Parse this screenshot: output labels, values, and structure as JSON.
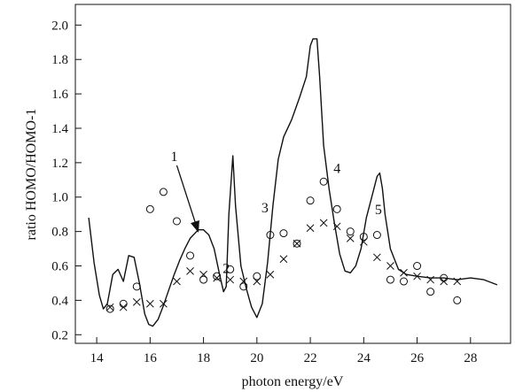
{
  "chart_data": {
    "type": "line",
    "xlabel": "photon energy/eV",
    "ylabel": "ratio HOMO/HOMO-1",
    "xlim": [
      13.2,
      29.5
    ],
    "ylim": [
      0.15,
      2.12
    ],
    "x_ticks": [
      14,
      16,
      18,
      20,
      22,
      24,
      26,
      28
    ],
    "x_tick_labels": [
      "14",
      "16",
      "18",
      "20",
      "22",
      "24",
      "26",
      "28"
    ],
    "y_ticks": [
      0.2,
      0.4,
      0.6,
      0.8,
      1.0,
      1.2,
      1.4,
      1.6,
      1.8,
      2.0
    ],
    "y_tick_labels": [
      "0.2",
      "0.4",
      "0.6",
      "0.8",
      "1.0",
      "1.2",
      "1.4",
      "1.6",
      "1.8",
      "2.0"
    ],
    "grid": false,
    "legend": "none",
    "series": [
      {
        "marker": "line",
        "x": [
          13.7,
          13.9,
          14.1,
          14.25,
          14.4,
          14.6,
          14.8,
          15.0,
          15.2,
          15.4,
          15.6,
          15.8,
          15.95,
          16.1,
          16.3,
          16.5,
          16.7,
          16.9,
          17.1,
          17.3,
          17.5,
          17.8,
          18.0,
          18.2,
          18.4,
          18.6,
          18.75,
          18.85,
          18.95,
          19.1,
          19.2,
          19.4,
          19.6,
          19.8,
          20.0,
          20.2,
          20.4,
          20.6,
          20.8,
          21.0,
          21.3,
          21.6,
          21.85,
          22.0,
          22.1,
          22.25,
          22.35,
          22.5,
          22.7,
          22.9,
          23.1,
          23.3,
          23.5,
          23.7,
          23.9,
          24.1,
          24.3,
          24.5,
          24.6,
          24.7,
          24.8,
          25.0,
          25.3,
          25.6,
          26.0,
          26.5,
          27.0,
          27.5,
          28.0,
          28.5,
          29.0
        ],
        "y": [
          0.88,
          0.62,
          0.43,
          0.35,
          0.38,
          0.55,
          0.58,
          0.51,
          0.66,
          0.65,
          0.5,
          0.32,
          0.26,
          0.25,
          0.29,
          0.37,
          0.46,
          0.55,
          0.63,
          0.7,
          0.76,
          0.81,
          0.81,
          0.78,
          0.7,
          0.55,
          0.45,
          0.48,
          0.9,
          1.24,
          0.95,
          0.6,
          0.47,
          0.36,
          0.3,
          0.38,
          0.62,
          0.95,
          1.22,
          1.35,
          1.45,
          1.58,
          1.7,
          1.88,
          1.92,
          1.92,
          1.7,
          1.3,
          1.05,
          0.85,
          0.67,
          0.57,
          0.56,
          0.6,
          0.7,
          0.88,
          1.0,
          1.12,
          1.14,
          1.05,
          0.9,
          0.7,
          0.58,
          0.55,
          0.54,
          0.53,
          0.53,
          0.52,
          0.53,
          0.52,
          0.49
        ]
      },
      {
        "marker": "o",
        "x": [
          14.5,
          15.0,
          15.5,
          16.0,
          16.5,
          17.0,
          17.5,
          18.0,
          18.5,
          19.0,
          19.5,
          20.0,
          20.5,
          21.0,
          21.5,
          22.0,
          22.5,
          23.0,
          23.5,
          24.0,
          24.5,
          25.0,
          25.5,
          26.0,
          26.5,
          27.0,
          27.5
        ],
        "y": [
          0.35,
          0.38,
          0.48,
          0.93,
          1.03,
          0.86,
          0.66,
          0.52,
          0.54,
          0.58,
          0.48,
          0.54,
          0.78,
          0.79,
          0.73,
          0.98,
          1.09,
          0.93,
          0.8,
          0.77,
          0.78,
          0.52,
          0.51,
          0.6,
          0.45,
          0.53,
          0.4
        ]
      },
      {
        "marker": "x",
        "x": [
          14.5,
          15.0,
          15.5,
          16.0,
          16.5,
          17.0,
          17.5,
          18.0,
          18.5,
          19.0,
          19.5,
          20.0,
          20.5,
          21.0,
          21.5,
          22.0,
          22.5,
          23.0,
          23.5,
          24.0,
          24.5,
          25.0,
          25.5,
          26.0,
          26.5,
          27.0,
          27.5
        ],
        "y": [
          0.36,
          0.36,
          0.39,
          0.38,
          0.38,
          0.51,
          0.57,
          0.55,
          0.53,
          0.52,
          0.51,
          0.51,
          0.55,
          0.64,
          0.73,
          0.82,
          0.85,
          0.83,
          0.76,
          0.74,
          0.65,
          0.6,
          0.56,
          0.54,
          0.52,
          0.51,
          0.51
        ]
      }
    ],
    "annotations": [
      {
        "text": "1",
        "x": 16.9,
        "y": 1.21,
        "arrow_to": [
          17.8,
          0.8
        ]
      },
      {
        "text": "2",
        "x": 18.85,
        "y": 0.56
      },
      {
        "text": "3",
        "x": 20.3,
        "y": 0.91
      },
      {
        "text": "4",
        "x": 23.0,
        "y": 1.14
      },
      {
        "text": "5",
        "x": 24.55,
        "y": 0.9
      }
    ]
  }
}
